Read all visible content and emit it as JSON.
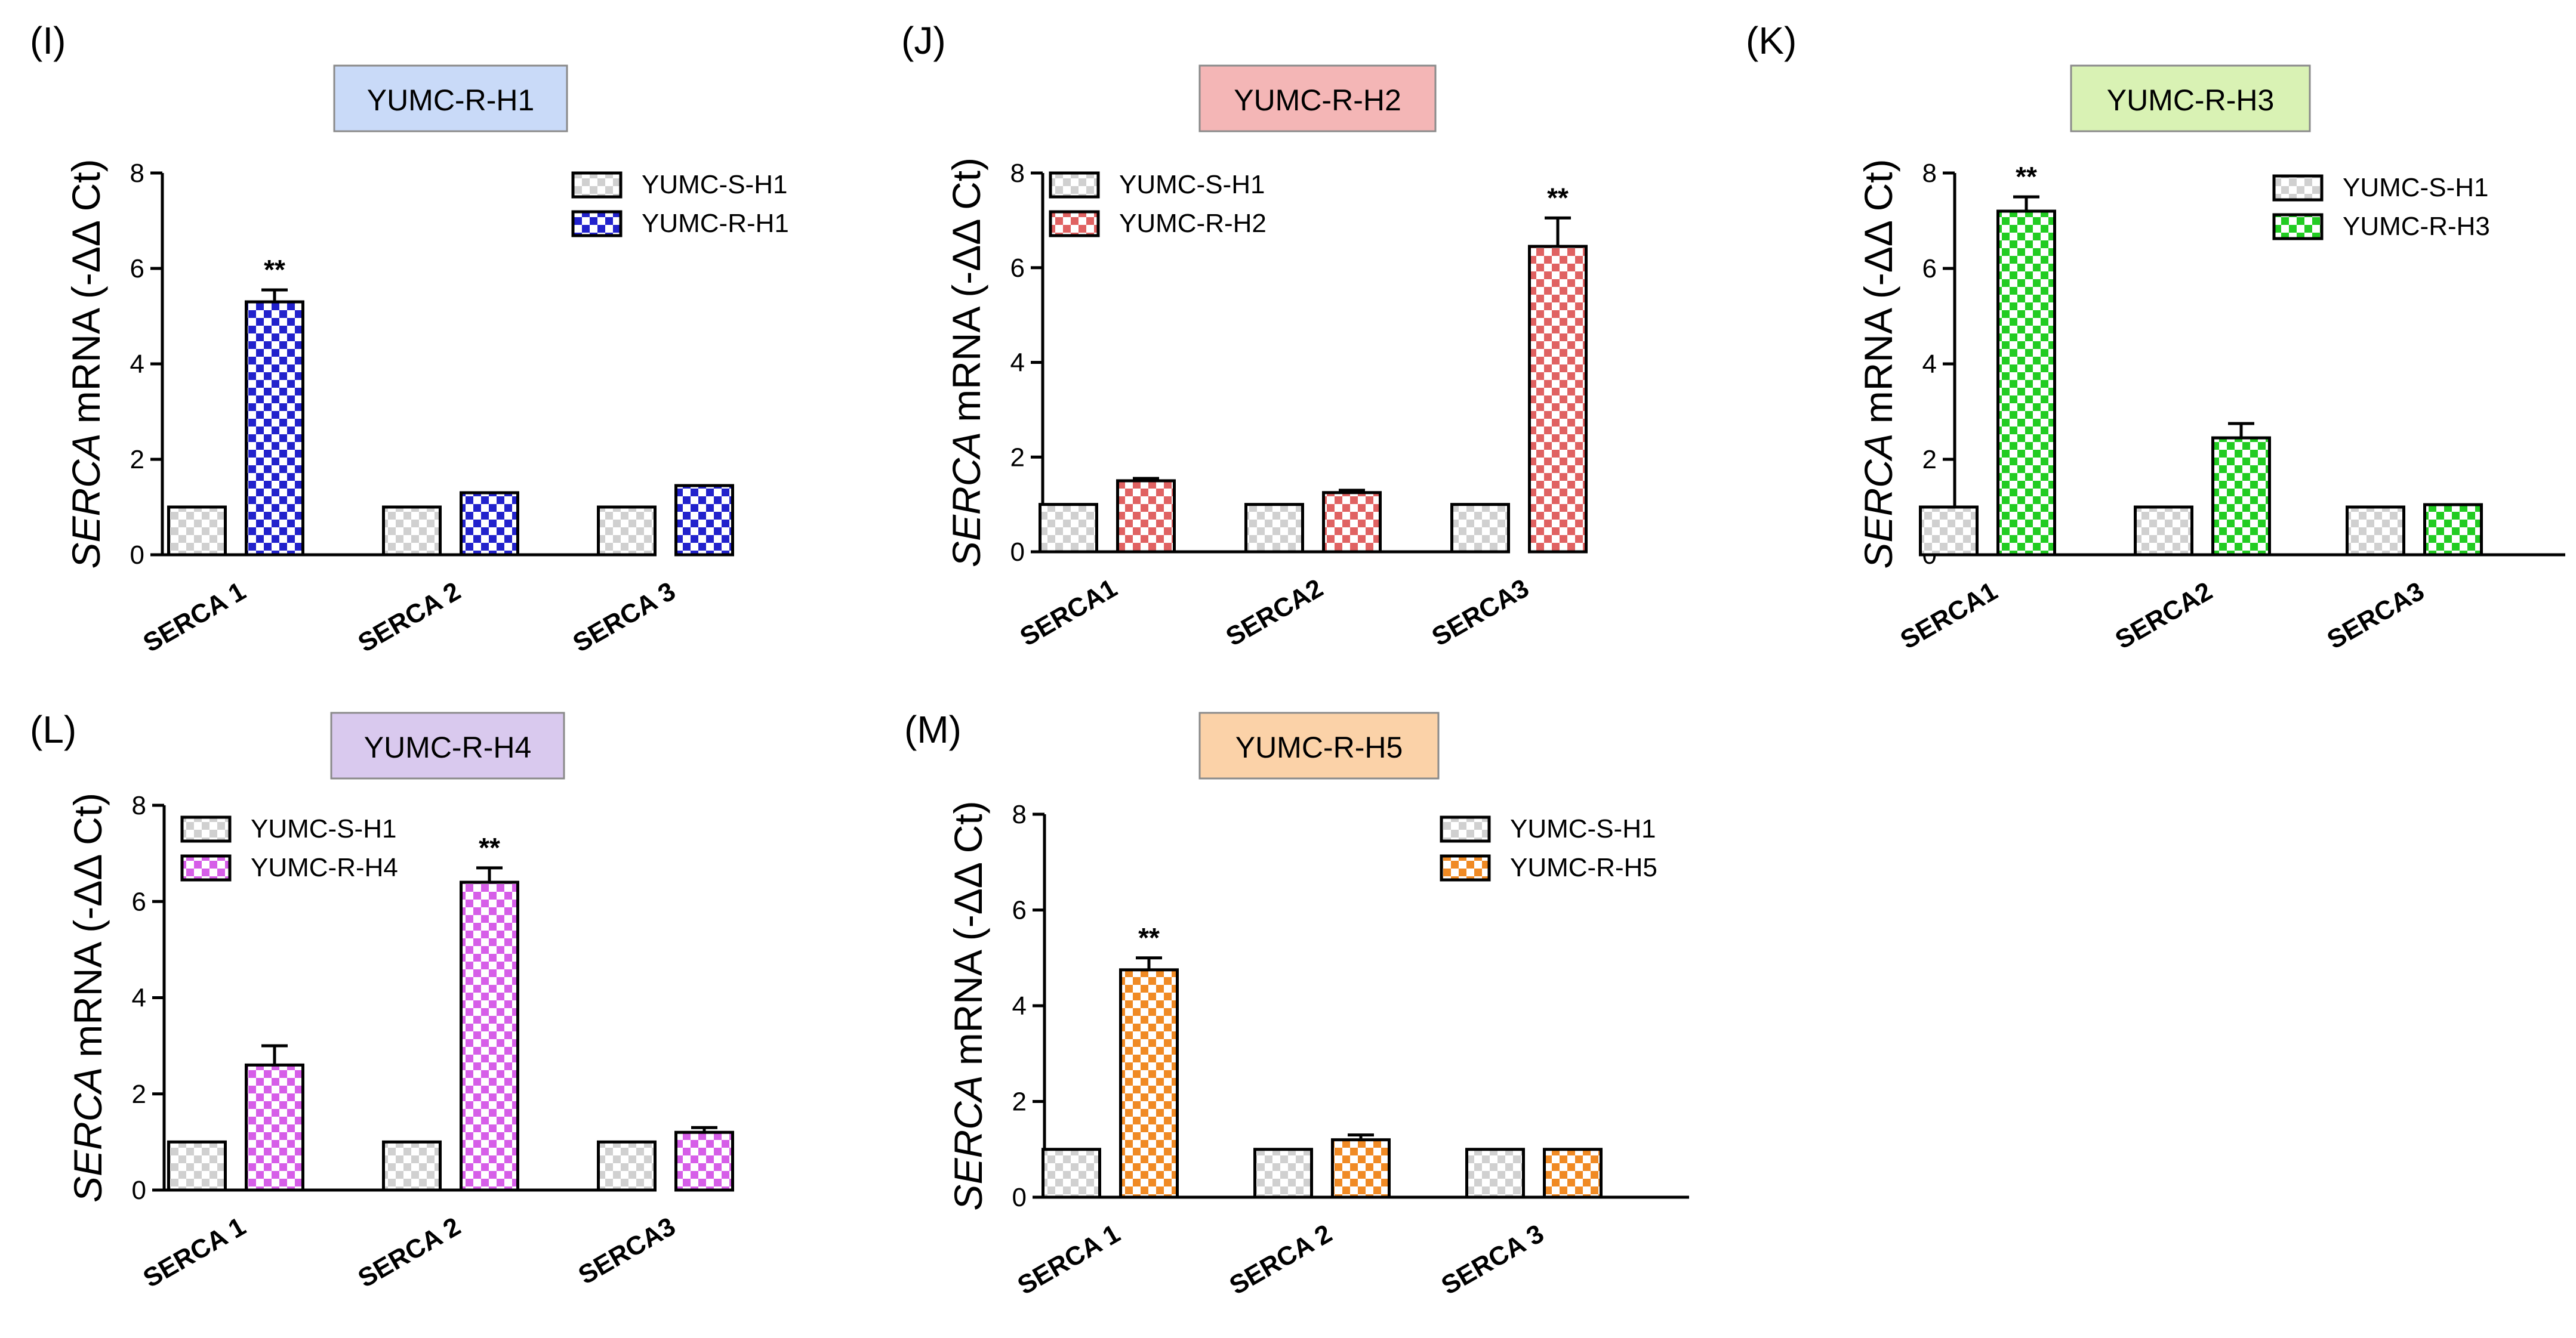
{
  "figure": {
    "background": "#ffffff",
    "neutral_color": "#d0d0d0"
  },
  "chart_data": [
    {
      "type": "bar",
      "panel_label": "(I)",
      "title": "YUMC-R-H1",
      "title_box_color": "#c9daf8",
      "ylabel_italic": "SERCA",
      "ylabel_rest": "mRNA (-ΔΔ Ct)",
      "xlabel": "",
      "ylim": [
        0,
        8
      ],
      "yticks": [
        "0",
        "2",
        "4",
        "6",
        "8"
      ],
      "categories": [
        "SERCA 1",
        "SERCA 2",
        "SERCA 3"
      ],
      "legend": [
        "YUMC-S-H1",
        "YUMC-R-H1"
      ],
      "legend_position": "top-right",
      "colors": [
        "#d0d0d0",
        "#2222cc"
      ],
      "series": [
        {
          "name": "YUMC-S-H1",
          "values": [
            1.0,
            1.0,
            1.0
          ],
          "errors": [
            0,
            0,
            0
          ],
          "significance": [
            "",
            "",
            ""
          ]
        },
        {
          "name": "YUMC-R-H1",
          "values": [
            5.3,
            1.3,
            1.45
          ],
          "errors": [
            0.25,
            0,
            0
          ],
          "significance": [
            "**",
            "",
            ""
          ]
        }
      ]
    },
    {
      "type": "bar",
      "panel_label": "(J)",
      "title": "YUMC-R-H2",
      "title_box_color": "#f4b6b6",
      "ylabel_italic": "SERCA",
      "ylabel_rest": "mRNA (-ΔΔ Ct)",
      "xlabel": "",
      "ylim": [
        0,
        8
      ],
      "yticks": [
        "0",
        "2",
        "4",
        "6",
        "8"
      ],
      "categories": [
        "SERCA1",
        "SERCA2",
        "SERCA3"
      ],
      "legend": [
        "YUMC-S-H1",
        "YUMC-R-H2"
      ],
      "legend_position": "top-left",
      "colors": [
        "#d0d0d0",
        "#e06262"
      ],
      "series": [
        {
          "name": "YUMC-S-H1",
          "values": [
            1.0,
            1.0,
            1.0
          ],
          "errors": [
            0,
            0,
            0
          ],
          "significance": [
            "",
            "",
            ""
          ]
        },
        {
          "name": "YUMC-R-H2",
          "values": [
            1.5,
            1.25,
            6.45
          ],
          "errors": [
            0.05,
            0.05,
            0.6
          ],
          "significance": [
            "",
            "",
            "**"
          ]
        }
      ]
    },
    {
      "type": "bar",
      "panel_label": "(K)",
      "title": "YUMC-R-H3",
      "title_box_color": "#d9f2b4",
      "ylabel_italic": "SERCA",
      "ylabel_rest": "mRNA (-ΔΔ Ct)",
      "xlabel": "",
      "ylim": [
        0,
        8
      ],
      "yticks": [
        "0",
        "2",
        "4",
        "6",
        "8"
      ],
      "categories": [
        "SERCA1",
        "SERCA2",
        "SERCA3"
      ],
      "legend": [
        "YUMC-S-H1",
        "YUMC-R-H3"
      ],
      "legend_position": "top-right",
      "colors": [
        "#d0d0d0",
        "#22cc22"
      ],
      "series": [
        {
          "name": "YUMC-S-H1",
          "values": [
            1.0,
            1.0,
            1.0
          ],
          "errors": [
            0,
            0,
            0
          ],
          "significance": [
            "",
            "",
            ""
          ]
        },
        {
          "name": "YUMC-R-H3",
          "values": [
            7.2,
            2.45,
            1.05
          ],
          "errors": [
            0.3,
            0.3,
            0
          ],
          "significance": [
            "**",
            "",
            ""
          ]
        }
      ]
    },
    {
      "type": "bar",
      "panel_label": "(L)",
      "title": "YUMC-R-H4",
      "title_box_color": "#d9c9ee",
      "ylabel_italic": "SERCA",
      "ylabel_rest": "mRNA (-ΔΔ Ct)",
      "xlabel": "",
      "ylim": [
        0,
        8
      ],
      "yticks": [
        "0",
        "2",
        "4",
        "6",
        "8"
      ],
      "categories": [
        "SERCA 1",
        "SERCA 2",
        "SERCA3"
      ],
      "legend": [
        "YUMC-S-H1",
        "YUMC-R-H4"
      ],
      "legend_position": "top-left",
      "colors": [
        "#d0d0d0",
        "#d65ee8"
      ],
      "series": [
        {
          "name": "YUMC-S-H1",
          "values": [
            1.0,
            1.0,
            1.0
          ],
          "errors": [
            0,
            0,
            0
          ],
          "significance": [
            "",
            "",
            ""
          ]
        },
        {
          "name": "YUMC-R-H4",
          "values": [
            2.6,
            6.4,
            1.2
          ],
          "errors": [
            0.4,
            0.3,
            0.1
          ],
          "significance": [
            "",
            "**",
            ""
          ]
        }
      ]
    },
    {
      "type": "bar",
      "panel_label": "(M)",
      "title": "YUMC-R-H5",
      "title_box_color": "#fbd2a8",
      "ylabel_italic": "SERCA",
      "ylabel_rest": "mRNA (-ΔΔ Ct)",
      "xlabel": "",
      "ylim": [
        0,
        8
      ],
      "yticks": [
        "0",
        "2",
        "4",
        "6",
        "8"
      ],
      "categories": [
        "SERCA 1",
        "SERCA 2",
        "SERCA 3"
      ],
      "legend": [
        "YUMC-S-H1",
        "YUMC-R-H5"
      ],
      "legend_position": "top-right",
      "colors": [
        "#d0d0d0",
        "#f08a24"
      ],
      "series": [
        {
          "name": "YUMC-S-H1",
          "values": [
            1.0,
            1.0,
            1.0
          ],
          "errors": [
            0,
            0,
            0
          ],
          "significance": [
            "",
            "",
            ""
          ]
        },
        {
          "name": "YUMC-R-H5",
          "values": [
            4.75,
            1.2,
            1.0
          ],
          "errors": [
            0.25,
            0.1,
            0
          ],
          "significance": [
            "**",
            "",
            ""
          ]
        }
      ]
    }
  ]
}
